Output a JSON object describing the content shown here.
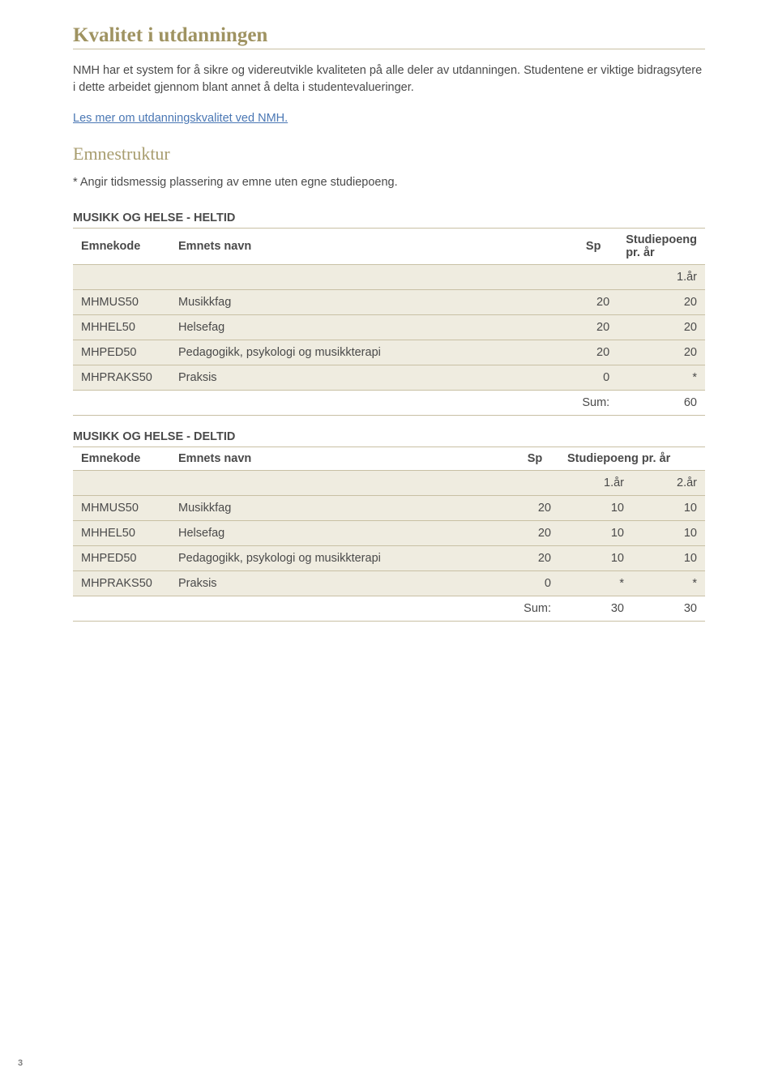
{
  "heading": "Kvalitet i utdanningen",
  "intro": "NMH har et system for å sikre og videreutvikle kvaliteten på alle deler av utdanningen. Studentene er viktige bidragsytere i dette arbeidet gjennom blant annet å delta i studentevalueringer.",
  "link_text": "Les mer om utdanningskvalitet ved NMH.",
  "subheading": "Emnestruktur",
  "note": "* Angir tidsmessig plassering av emne uten egne studiepoeng.",
  "table1": {
    "title": "MUSIKK OG HELSE - HELTID",
    "headers": {
      "code": "Emnekode",
      "name": "Emnets navn",
      "sp": "Sp",
      "sp_year": "Studiepoeng pr. år"
    },
    "year_label": "1.år",
    "rows": [
      {
        "code": "MHMUS50",
        "name": "Musikkfag",
        "sp": "20",
        "y1": "20"
      },
      {
        "code": "MHHEL50",
        "name": "Helsefag",
        "sp": "20",
        "y1": "20"
      },
      {
        "code": "MHPED50",
        "name": "Pedagogikk, psykologi og musikkterapi",
        "sp": "20",
        "y1": "20"
      },
      {
        "code": "MHPRAKS50",
        "name": "Praksis",
        "sp": "0",
        "y1": "*"
      }
    ],
    "sum_label": "Sum:",
    "sum_y1": "60"
  },
  "table2": {
    "title": "MUSIKK OG HELSE - DELTID",
    "headers": {
      "code": "Emnekode",
      "name": "Emnets navn",
      "sp": "Sp",
      "sp_year": "Studiepoeng pr. år"
    },
    "year1_label": "1.år",
    "year2_label": "2.år",
    "rows": [
      {
        "code": "MHMUS50",
        "name": "Musikkfag",
        "sp": "20",
        "y1": "10",
        "y2": "10"
      },
      {
        "code": "MHHEL50",
        "name": "Helsefag",
        "sp": "20",
        "y1": "10",
        "y2": "10"
      },
      {
        "code": "MHPED50",
        "name": "Pedagogikk, psykologi og musikkterapi",
        "sp": "20",
        "y1": "10",
        "y2": "10"
      },
      {
        "code": "MHPRAKS50",
        "name": "Praksis",
        "sp": "0",
        "y1": "*",
        "y2": "*"
      }
    ],
    "sum_label": "Sum:",
    "sum_y1": "30",
    "sum_y2": "30"
  },
  "page_number": "3"
}
